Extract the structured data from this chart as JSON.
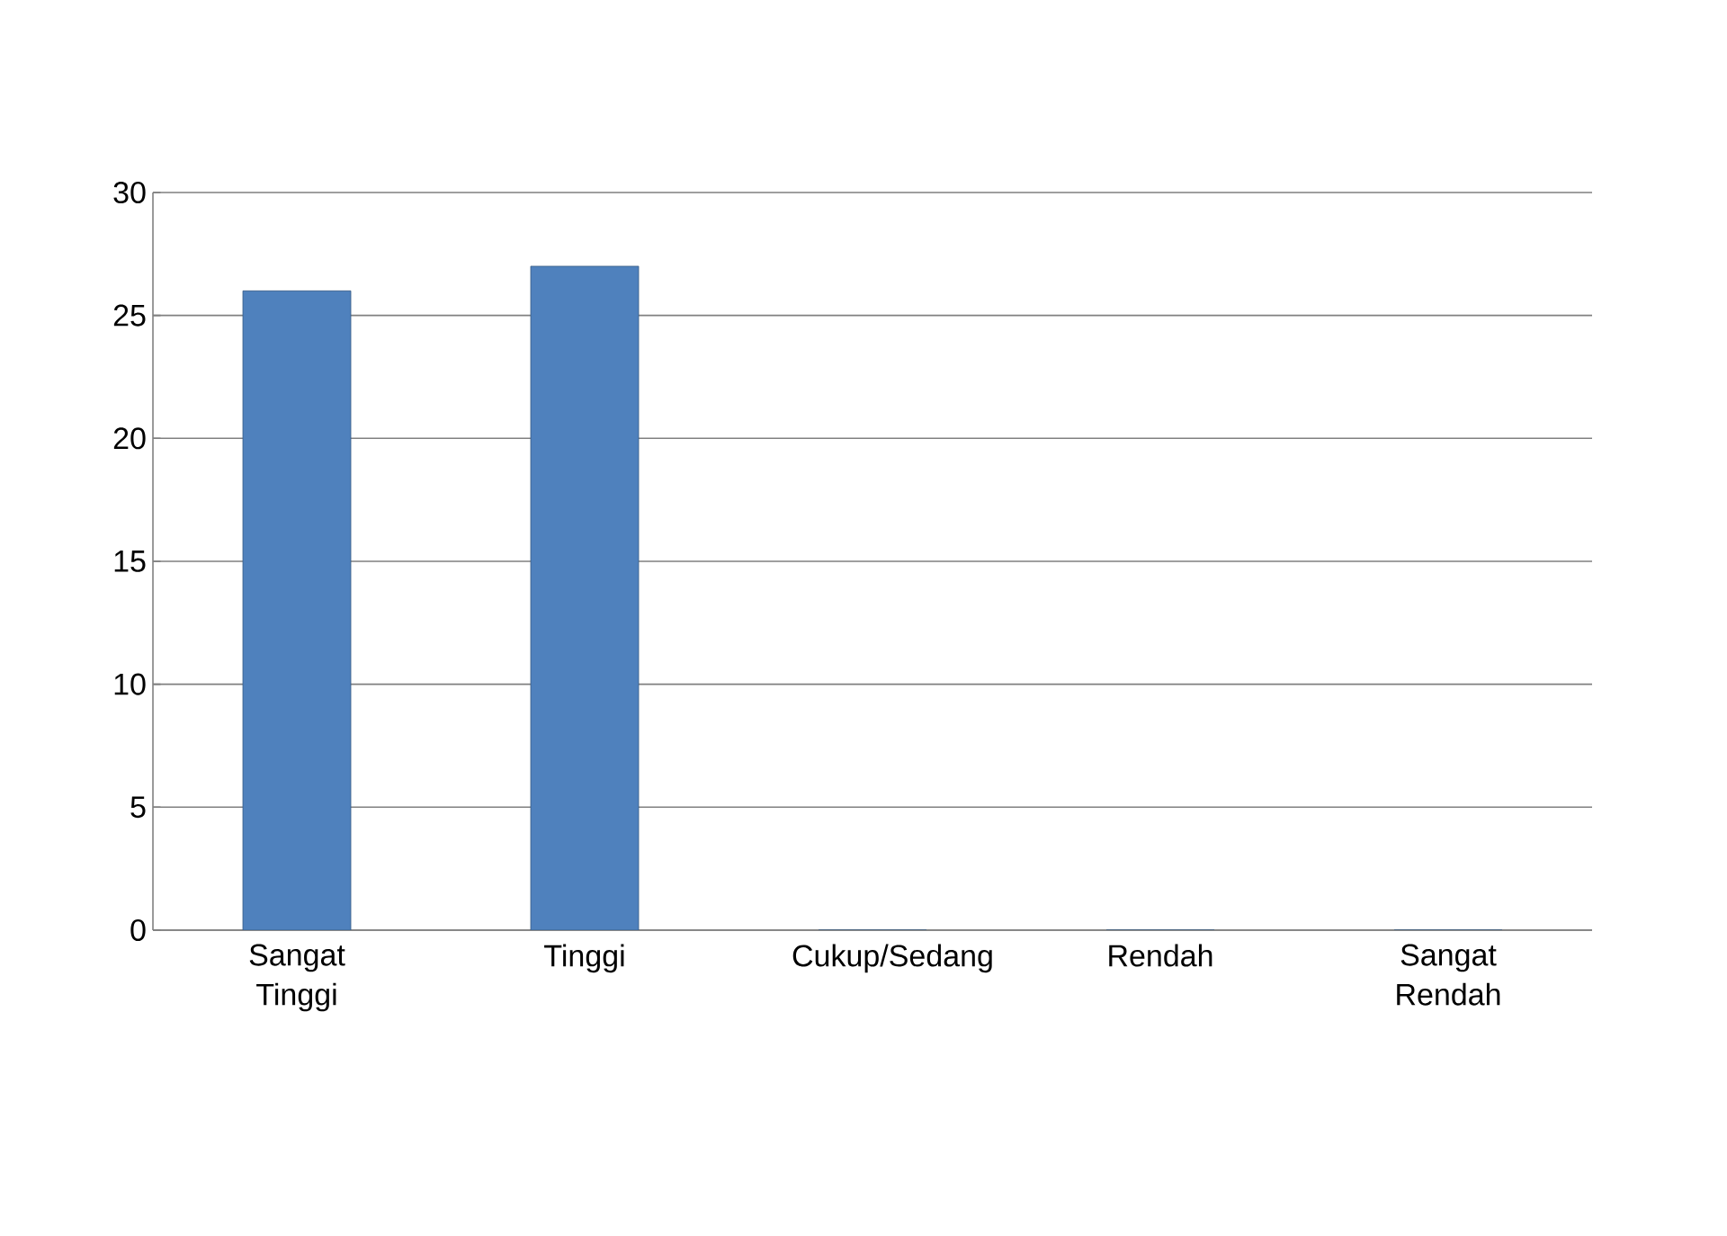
{
  "chart_data": {
    "type": "bar",
    "categories": [
      "Sangat Tinggi",
      "Tinggi",
      "Cukup/Sedang",
      "Rendah",
      "Sangat Rendah"
    ],
    "values": [
      26,
      27,
      0,
      0,
      0
    ],
    "color": "#4f81bd",
    "ylim": [
      0,
      30
    ],
    "yticks": [
      0,
      5,
      10,
      15,
      20,
      25,
      30
    ],
    "grid": "y"
  }
}
